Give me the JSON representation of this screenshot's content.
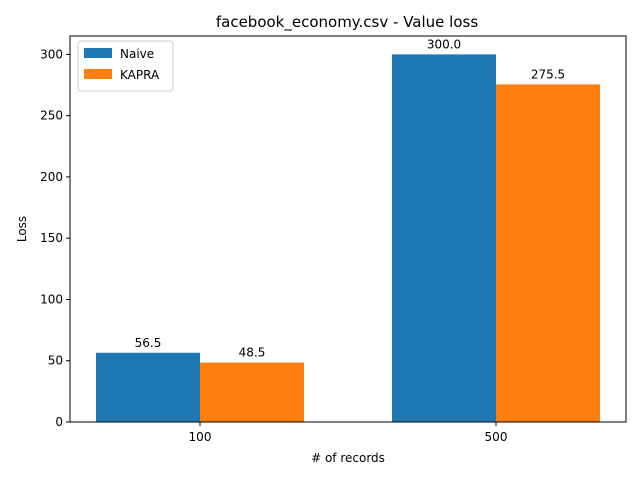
{
  "chart_data": {
    "type": "bar",
    "title": "facebook_economy.csv - Value loss",
    "xlabel": "# of records",
    "ylabel": "Loss",
    "categories": [
      "100",
      "500"
    ],
    "series": [
      {
        "name": "Naive",
        "values": [
          56.5,
          300.0
        ],
        "labels": [
          "56.5",
          "300.0"
        ],
        "color": "#1f77b4"
      },
      {
        "name": "KAPRA",
        "values": [
          48.5,
          275.5
        ],
        "labels": [
          "48.5",
          "275.5"
        ],
        "color": "#ff7f0e"
      }
    ],
    "ylim": [
      0,
      315
    ],
    "yticks": [
      0,
      50,
      100,
      150,
      200,
      250,
      300
    ],
    "legend_position": "top-left",
    "grid": false
  }
}
